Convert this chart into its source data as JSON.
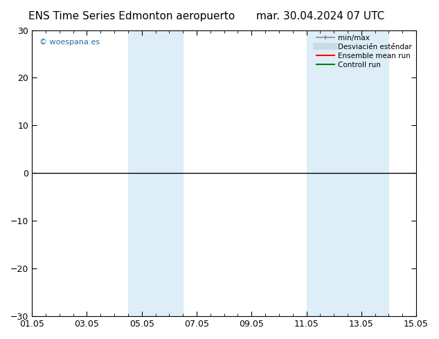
{
  "title_left": "ENS Time Series Edmonton aeropuerto",
  "title_right": "mar. 30.04.2024 07 UTC",
  "ylim": [
    -30,
    30
  ],
  "yticks": [
    -30,
    -20,
    -10,
    0,
    10,
    20,
    30
  ],
  "xtick_labels": [
    "01.05",
    "03.05",
    "05.05",
    "07.05",
    "09.05",
    "11.05",
    "13.05",
    "15.05"
  ],
  "xtick_positions": [
    0,
    2,
    4,
    6,
    8,
    10,
    12,
    14
  ],
  "shaded_bands": [
    {
      "x_start": 3.5,
      "x_end": 5.5,
      "color": "#ddeef8"
    },
    {
      "x_start": 10.0,
      "x_end": 11.0,
      "color": "#ddeef8"
    },
    {
      "x_start": 11.0,
      "x_end": 13.0,
      "color": "#ddeef8"
    }
  ],
  "hline_y": 0,
  "hline_color": "#000000",
  "watermark": "© woespana.es",
  "watermark_color": "#1a6fa0",
  "legend_label_minmax": "min/max",
  "legend_label_desv": "Desviacié́n esté́ndar",
  "legend_label_ensemble": "Ensemble mean run",
  "legend_label_control": "Controll run",
  "legend_color_minmax": "#888888",
  "legend_color_desv": "#c8dce8",
  "legend_color_ensemble": "#ff0000",
  "legend_color_control": "#008000",
  "background_color": "#ffffff",
  "plot_bg_color": "#ffffff",
  "title_fontsize": 11,
  "tick_fontsize": 9
}
